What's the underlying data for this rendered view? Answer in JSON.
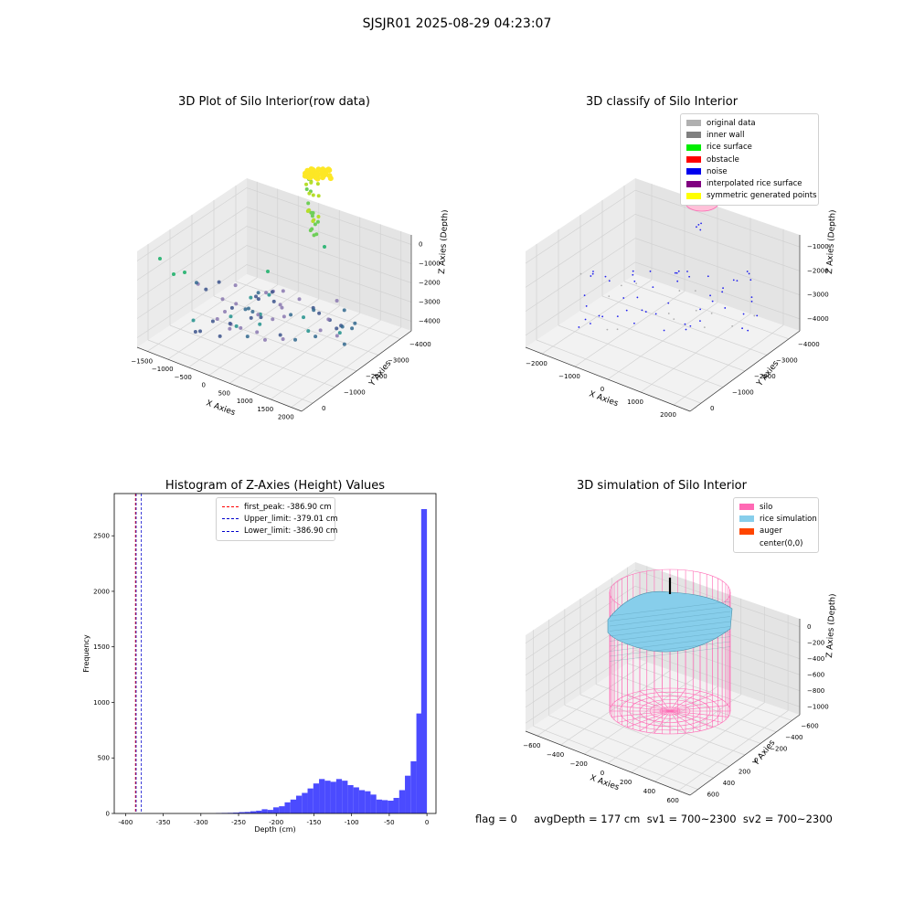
{
  "suptitle": "SJSJR01 2025-08-29 04:23:07",
  "footer": "flag = 0     avgDepth = 177 cm  sv1 = 700~2300  sv2 = 700~2300",
  "chart_data": [
    {
      "type": "scatter3d",
      "title": "3D Plot of Silo Interior(row data)",
      "xlabel": "X Axies",
      "ylabel": "Y Axies",
      "zlabel": "Z Axies (Depth)",
      "x_ticks": [
        "−1500",
        "−1000",
        "−500",
        "0",
        "500",
        "1000",
        "1500",
        "2000"
      ],
      "y_ticks": [
        "0",
        "−1000",
        "−2000",
        "−3000",
        "−4000"
      ],
      "z_ticks": [
        "0",
        "−1000",
        "−2000",
        "−3000",
        "−4000"
      ],
      "colormap": "viridis"
    },
    {
      "type": "scatter3d",
      "title": "3D classify of Silo Interior",
      "xlabel": "X Axies",
      "ylabel": "Y Axies",
      "zlabel": "Z Axies (Depth)",
      "x_ticks": [
        "−2000",
        "−1000",
        "0",
        "1000",
        "2000"
      ],
      "y_ticks": [
        "0",
        "−1000",
        "−2000",
        "−3000",
        "−4000"
      ],
      "z_ticks": [
        "−1000",
        "−2000",
        "−3000",
        "−4000"
      ],
      "legend": [
        {
          "label": "original data",
          "color": "#b0b0b0"
        },
        {
          "label": "inner wall",
          "color": "#808080"
        },
        {
          "label": "rice surface",
          "color": "#00ee00"
        },
        {
          "label": "obstacle",
          "color": "#ff0000"
        },
        {
          "label": "noise",
          "color": "#0000ee"
        },
        {
          "label": "interpolated rice surface",
          "color": "#800080"
        },
        {
          "label": "symmetric generated points",
          "color": "#ffff00"
        }
      ]
    },
    {
      "type": "histogram",
      "title": "Histogram of Z-Axies (Height) Values",
      "xlabel": "Depth (cm)",
      "ylabel": "Frequency",
      "xlim": [
        -415,
        12
      ],
      "ylim": [
        0,
        2880
      ],
      "x_ticks": [
        -400,
        -350,
        -300,
        -250,
        -200,
        -150,
        -100,
        -50,
        0
      ],
      "y_ticks": [
        0,
        500,
        1000,
        1500,
        2000,
        2500
      ],
      "bin_width": 7.6,
      "bins": [
        {
          "x0": -280,
          "count": 4
        },
        {
          "x0": -272.4,
          "count": 5
        },
        {
          "x0": -264.8,
          "count": 6
        },
        {
          "x0": -257.2,
          "count": 8
        },
        {
          "x0": -249.6,
          "count": 12
        },
        {
          "x0": -242,
          "count": 14
        },
        {
          "x0": -234.4,
          "count": 20
        },
        {
          "x0": -226.8,
          "count": 25
        },
        {
          "x0": -219.2,
          "count": 38
        },
        {
          "x0": -211.6,
          "count": 32
        },
        {
          "x0": -204,
          "count": 55
        },
        {
          "x0": -196.4,
          "count": 65
        },
        {
          "x0": -188.8,
          "count": 100
        },
        {
          "x0": -181.2,
          "count": 125
        },
        {
          "x0": -173.6,
          "count": 160
        },
        {
          "x0": -166,
          "count": 185
        },
        {
          "x0": -158.4,
          "count": 225
        },
        {
          "x0": -150.8,
          "count": 270
        },
        {
          "x0": -143.2,
          "count": 310
        },
        {
          "x0": -135.6,
          "count": 295
        },
        {
          "x0": -128,
          "count": 285
        },
        {
          "x0": -120.4,
          "count": 310
        },
        {
          "x0": -112.8,
          "count": 295
        },
        {
          "x0": -105.2,
          "count": 255
        },
        {
          "x0": -97.6,
          "count": 235
        },
        {
          "x0": -90,
          "count": 210
        },
        {
          "x0": -82.4,
          "count": 200
        },
        {
          "x0": -74.8,
          "count": 170
        },
        {
          "x0": -67.2,
          "count": 125
        },
        {
          "x0": -59.6,
          "count": 120
        },
        {
          "x0": -52,
          "count": 115
        },
        {
          "x0": -44.4,
          "count": 140
        },
        {
          "x0": -36.8,
          "count": 210
        },
        {
          "x0": -29.2,
          "count": 340
        },
        {
          "x0": -21.6,
          "count": 470
        },
        {
          "x0": -14,
          "count": 900
        },
        {
          "x0": -7.6,
          "count": 2740
        }
      ],
      "bar_color": "#4b4bff",
      "lines": [
        {
          "label": "first_peak: -386.90 cm",
          "value": -386.9,
          "color": "#ff0000"
        },
        {
          "label": "Upper_limit: -379.01 cm",
          "value": -379.01,
          "color": "#0000cc"
        },
        {
          "label": "Lower_limit: -386.90 cm",
          "value": -386.9,
          "color": "#0000cc"
        }
      ]
    },
    {
      "type": "surface3d",
      "title": "3D simulation of Silo Interior",
      "xlabel": "X Axies",
      "ylabel": "Y Axies",
      "zlabel": "Z Axies (Depth)",
      "x_ticks": [
        "−600",
        "−400",
        "−200",
        "0",
        "200",
        "400",
        "600"
      ],
      "y_ticks": [
        "600",
        "400",
        "200",
        "0",
        "−200",
        "−400",
        "−600"
      ],
      "z_ticks": [
        "0",
        "−200",
        "−400",
        "−600",
        "−800",
        "−1000"
      ],
      "legend": [
        {
          "label": "silo",
          "color": "#ff69b4"
        },
        {
          "label": "rice simulation",
          "color": "#87ceeb"
        },
        {
          "label": "auger",
          "color": "#ff4500"
        },
        {
          "label": "center(0,0)",
          "color": "#ffffff"
        }
      ]
    }
  ]
}
